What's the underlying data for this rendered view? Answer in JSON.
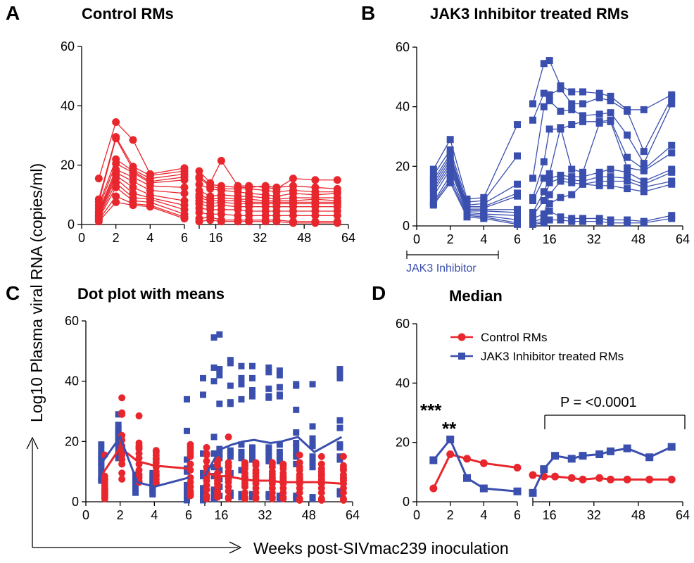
{
  "colors": {
    "control": "#e8262d",
    "jak3": "#3a4fae",
    "axis": "#000000"
  },
  "axis_labels": {
    "y": "Log10 Plasma viral RNA (copies/ml)",
    "x": "Weeks post-SIVmac239 inoculation"
  },
  "panels": {
    "A": {
      "letter": "A",
      "title": "Control RMs"
    },
    "B": {
      "letter": "B",
      "title": "JAK3 Inhibitor treated RMs",
      "inhibitor_label": "JAK3 Inhibitor"
    },
    "C": {
      "letter": "C",
      "title": "Dot plot with means"
    },
    "D": {
      "letter": "D",
      "title": "Median",
      "legend": [
        "Control RMs",
        "JAK3 Inhibitor treated RMs"
      ],
      "stars_week1": "***",
      "stars_week2": "**",
      "pvalue": "P = <0.0001"
    }
  },
  "chart_data": [
    {
      "type": "line",
      "panel": "A",
      "title": "Control RMs",
      "series_marker": "circle",
      "ylim": [
        0,
        60
      ],
      "x_ticks": [
        "0",
        "2",
        "4",
        "6",
        "16",
        "32",
        "48",
        "64"
      ],
      "y_ticks": [
        "0",
        "20",
        "40",
        "60"
      ],
      "x_segments": [
        [
          0,
          6
        ],
        [
          8,
          64
        ]
      ],
      "x": [
        1,
        2,
        3,
        4,
        6,
        10,
        14,
        18,
        24,
        28,
        34,
        38,
        44,
        52,
        60
      ],
      "series": [
        {
          "values": [
            15.5,
            34.5,
            28.5,
            17.0,
            19.0,
            18.0,
            14.0,
            21.5,
            13.0,
            13.0,
            12.5,
            12.0,
            15.5,
            15.0,
            15.0
          ]
        },
        {
          "values": [
            8.5,
            29.5,
            19.5,
            16.5,
            18.0,
            16.0,
            13.5,
            13.0,
            12.5,
            12.5,
            13.0,
            12.5,
            13.0,
            12.5,
            12.0
          ]
        },
        {
          "values": [
            7.5,
            29.0,
            18.5,
            15.5,
            17.0,
            15.5,
            13.0,
            12.0,
            12.0,
            12.0,
            11.5,
            11.0,
            11.5,
            11.0,
            11.0
          ]
        },
        {
          "values": [
            6.5,
            22.0,
            18.0,
            14.5,
            16.0,
            13.5,
            12.0,
            11.5,
            11.0,
            10.5,
            10.0,
            9.5,
            10.5,
            10.0,
            10.5
          ]
        },
        {
          "values": [
            5.5,
            20.5,
            17.5,
            14.0,
            15.0,
            11.5,
            9.5,
            10.0,
            9.5,
            9.5,
            9.0,
            8.5,
            9.0,
            9.0,
            9.0
          ]
        },
        {
          "values": [
            4.5,
            18.5,
            16.0,
            13.0,
            12.5,
            10.0,
            8.5,
            9.0,
            8.5,
            8.5,
            8.0,
            8.0,
            8.0,
            8.5,
            8.0
          ]
        },
        {
          "values": [
            4.0,
            17.5,
            14.5,
            11.5,
            10.5,
            9.0,
            8.0,
            8.0,
            8.0,
            7.5,
            7.5,
            7.5,
            7.5,
            7.5,
            7.5
          ]
        },
        {
          "values": [
            3.5,
            16.5,
            12.5,
            10.0,
            8.0,
            8.0,
            7.0,
            7.5,
            7.0,
            7.0,
            7.0,
            7.0,
            7.0,
            7.0,
            7.0
          ]
        },
        {
          "values": [
            3.0,
            15.5,
            10.5,
            9.0,
            6.5,
            7.0,
            6.0,
            6.5,
            6.0,
            6.0,
            6.0,
            6.0,
            6.0,
            6.0,
            6.0
          ]
        },
        {
          "values": [
            2.5,
            14.0,
            9.0,
            8.5,
            5.0,
            5.5,
            5.0,
            5.0,
            5.0,
            4.5,
            4.5,
            4.5,
            4.5,
            4.5,
            4.5
          ]
        },
        {
          "values": [
            2.0,
            12.5,
            8.0,
            7.5,
            3.5,
            4.0,
            3.5,
            3.5,
            3.0,
            3.0,
            3.0,
            3.0,
            3.0,
            3.0,
            3.0
          ]
        },
        {
          "values": [
            1.5,
            9.5,
            7.0,
            6.5,
            2.5,
            2.0,
            2.5,
            1.5,
            1.5,
            1.5,
            1.5,
            1.5,
            1.0,
            1.0,
            1.0
          ]
        },
        {
          "values": [
            1.0,
            7.5,
            6.5,
            6.0,
            2.0,
            1.0,
            1.5,
            1.0,
            1.0,
            1.0,
            1.0,
            1.0,
            0.5,
            0.5,
            0.5
          ]
        }
      ]
    },
    {
      "type": "line",
      "panel": "B",
      "title": "JAK3 Inhibitor treated RMs",
      "series_marker": "square",
      "ylim": [
        0,
        60
      ],
      "x_ticks": [
        "0",
        "2",
        "4",
        "6",
        "16",
        "32",
        "48",
        "64"
      ],
      "y_ticks": [
        "0",
        "20",
        "40",
        "60"
      ],
      "x_segments": [
        [
          0,
          6
        ],
        [
          8,
          64
        ]
      ],
      "x": [
        1,
        2,
        3,
        4,
        6,
        10,
        14,
        16,
        20,
        24,
        28,
        34,
        38,
        44,
        50,
        60
      ],
      "series": [
        {
          "values": [
            19.0,
            29.0,
            9.0,
            9.5,
            34.0,
            41.0,
            54.5,
            55.5,
            47.0,
            45.0,
            45.0,
            44.5,
            43.5,
            39.0,
            39.0,
            44.0
          ]
        },
        {
          "values": [
            17.0,
            25.5,
            8.0,
            8.5,
            23.5,
            35.5,
            44.5,
            44.0,
            46.0,
            41.0,
            41.0,
            43.0,
            42.0,
            38.5,
            25.0,
            43.0
          ]
        },
        {
          "values": [
            15.5,
            24.0,
            7.0,
            7.5,
            14.0,
            16.0,
            40.0,
            42.0,
            38.5,
            39.0,
            37.0,
            37.5,
            38.0,
            30.5,
            21.0,
            41.0
          ]
        },
        {
          "values": [
            14.5,
            23.0,
            6.5,
            6.5,
            11.0,
            9.5,
            21.5,
            32.5,
            32.5,
            34.0,
            35.0,
            35.0,
            35.5,
            23.0,
            19.0,
            27.0
          ]
        },
        {
          "values": [
            13.5,
            22.0,
            6.0,
            6.0,
            10.0,
            8.5,
            16.0,
            17.5,
            33.0,
            19.0,
            18.0,
            34.5,
            35.0,
            19.5,
            18.5,
            24.5
          ]
        },
        {
          "values": [
            12.5,
            21.0,
            5.5,
            5.5,
            5.5,
            4.5,
            11.5,
            16.0,
            17.0,
            16.5,
            16.5,
            18.0,
            19.0,
            18.0,
            15.0,
            19.0
          ]
        },
        {
          "values": [
            11.5,
            20.0,
            5.0,
            5.0,
            4.5,
            3.5,
            8.5,
            14.5,
            16.0,
            15.5,
            15.0,
            16.5,
            16.5,
            16.0,
            14.0,
            18.0
          ]
        },
        {
          "values": [
            10.0,
            19.0,
            4.5,
            4.0,
            3.5,
            2.5,
            4.0,
            10.5,
            15.0,
            14.5,
            14.0,
            15.0,
            15.0,
            15.0,
            13.0,
            15.0
          ]
        },
        {
          "values": [
            8.0,
            17.0,
            4.0,
            3.5,
            2.0,
            1.5,
            2.5,
            7.5,
            9.5,
            10.5,
            14.0,
            13.5,
            13.5,
            12.5,
            11.5,
            14.0
          ]
        },
        {
          "values": [
            7.5,
            15.5,
            3.5,
            3.0,
            1.0,
            1.0,
            1.5,
            5.0,
            3.0,
            2.5,
            2.5,
            2.5,
            2.0,
            2.0,
            1.5,
            3.5
          ]
        },
        {
          "values": [
            7.0,
            14.5,
            3.0,
            2.5,
            0.5,
            0.5,
            1.0,
            2.0,
            2.0,
            1.5,
            1.5,
            1.5,
            1.0,
            1.0,
            1.0,
            2.5
          ]
        }
      ]
    },
    {
      "type": "scatter",
      "panel": "C",
      "title": "Dot plot with means",
      "ylim": [
        0,
        60
      ],
      "x_ticks": [
        "0",
        "2",
        "4",
        "6",
        "16",
        "32",
        "48",
        "64"
      ],
      "y_ticks": [
        "0",
        "20",
        "40",
        "60"
      ],
      "x_segments": [
        [
          0,
          6
        ],
        [
          8,
          64
        ]
      ],
      "series": [
        {
          "name": "Control RMs",
          "marker": "circle",
          "x": [
            1,
            2,
            3,
            4,
            6,
            10,
            14,
            18,
            24,
            28,
            34,
            38,
            44,
            52,
            60
          ],
          "mean": [
            9.5,
            18.0,
            13.5,
            12.0,
            11.0,
            10.0,
            8.5,
            8.5,
            7.5,
            7.0,
            7.0,
            6.5,
            6.5,
            6.5,
            6.0
          ]
        },
        {
          "name": "JAK3 Inhibitor treated RMs",
          "marker": "square",
          "x": [
            1,
            2,
            3,
            4,
            6,
            10,
            14,
            16,
            20,
            24,
            28,
            34,
            38,
            44,
            50,
            60
          ],
          "mean": [
            13.5,
            21.5,
            6.5,
            5.0,
            8.0,
            8.5,
            15.0,
            17.5,
            19.0,
            20.0,
            20.5,
            19.5,
            20.0,
            21.5,
            16.5,
            21.5
          ]
        }
      ]
    },
    {
      "type": "line",
      "panel": "D",
      "title": "Median",
      "ylim": [
        0,
        60
      ],
      "x_ticks": [
        "0",
        "2",
        "4",
        "6",
        "16",
        "32",
        "48",
        "64"
      ],
      "y_ticks": [
        "0",
        "20",
        "40",
        "60"
      ],
      "x_segments": [
        [
          0,
          6
        ],
        [
          8,
          64
        ]
      ],
      "legend_position": "top-right",
      "series": [
        {
          "name": "Control RMs",
          "marker": "circle",
          "x": [
            1,
            2,
            3,
            4,
            6,
            10,
            14,
            18,
            24,
            28,
            34,
            38,
            44,
            52,
            60
          ],
          "values": [
            4.5,
            16.0,
            14.5,
            13.0,
            11.5,
            9.0,
            8.5,
            8.5,
            8.0,
            7.5,
            8.0,
            7.5,
            7.5,
            7.5,
            7.5
          ]
        },
        {
          "name": "JAK3 Inhibitor treated RMs",
          "marker": "square",
          "x": [
            1,
            2,
            3,
            4,
            6,
            10,
            14,
            18,
            24,
            28,
            34,
            38,
            44,
            52,
            60
          ],
          "values": [
            14.0,
            21.0,
            8.0,
            4.5,
            3.5,
            3.0,
            11.0,
            15.5,
            14.5,
            15.5,
            16.0,
            17.0,
            18.0,
            15.0,
            18.5
          ]
        }
      ]
    }
  ]
}
